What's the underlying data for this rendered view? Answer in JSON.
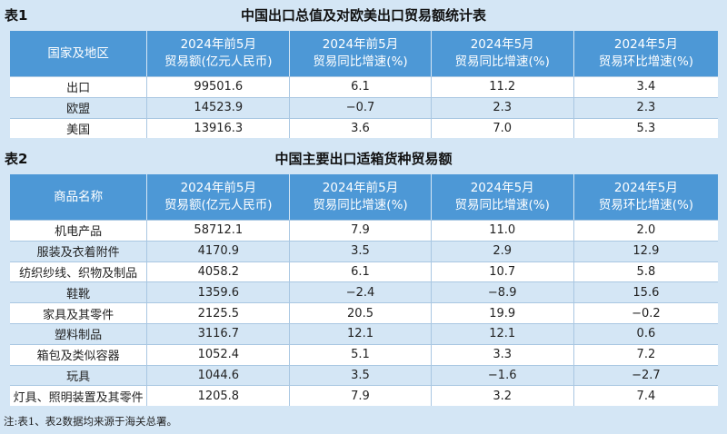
{
  "table1": {
    "id": "表1",
    "title": "中国出口总值及对欧美出口贸易额统计表",
    "headers": [
      [
        "国家及地区"
      ],
      [
        "2024年前5月",
        "贸易额(亿元人民币)"
      ],
      [
        "2024年前5月",
        "贸易同比增速(%)"
      ],
      [
        "2024年5月",
        "贸易同比增速(%)"
      ],
      [
        "2024年5月",
        "贸易环比增速(%)"
      ]
    ],
    "rows": [
      [
        "出口",
        "99501.6",
        "6.1",
        "11.2",
        "3.4"
      ],
      [
        "欧盟",
        "14523.9",
        "−0.7",
        "2.3",
        "2.3"
      ],
      [
        "美国",
        "13916.3",
        "3.6",
        "7.0",
        "5.3"
      ]
    ]
  },
  "table2": {
    "id": "表2",
    "title": "中国主要出口适箱货种贸易额",
    "headers": [
      [
        "商品名称"
      ],
      [
        "2024年前5月",
        "贸易额(亿元人民币)"
      ],
      [
        "2024年前5月",
        "贸易同比增速(%)"
      ],
      [
        "2024年5月",
        "贸易同比增速(%)"
      ],
      [
        "2024年5月",
        "贸易环比增速(%)"
      ]
    ],
    "rows": [
      [
        "机电产品",
        "58712.1",
        "7.9",
        "11.0",
        "2.0"
      ],
      [
        "服装及衣着附件",
        "4170.9",
        "3.5",
        "2.9",
        "12.9"
      ],
      [
        "纺织纱线、织物及制品",
        "4058.2",
        "6.1",
        "10.7",
        "5.8"
      ],
      [
        "鞋靴",
        "1359.6",
        "−2.4",
        "−8.9",
        "15.6"
      ],
      [
        "家具及其零件",
        "2125.5",
        "20.5",
        "19.9",
        "−0.2"
      ],
      [
        "塑料制品",
        "3116.7",
        "12.1",
        "12.1",
        "0.6"
      ],
      [
        "箱包及类似容器",
        "1052.4",
        "5.1",
        "3.3",
        "7.2"
      ],
      [
        "玩具",
        "1044.6",
        "3.5",
        "−1.6",
        "−2.7"
      ],
      [
        "灯具、照明装置及其零件",
        "1205.8",
        "7.9",
        "3.2",
        "7.4"
      ]
    ]
  },
  "note": "注:表1、表2数据均来源于海关总署。"
}
